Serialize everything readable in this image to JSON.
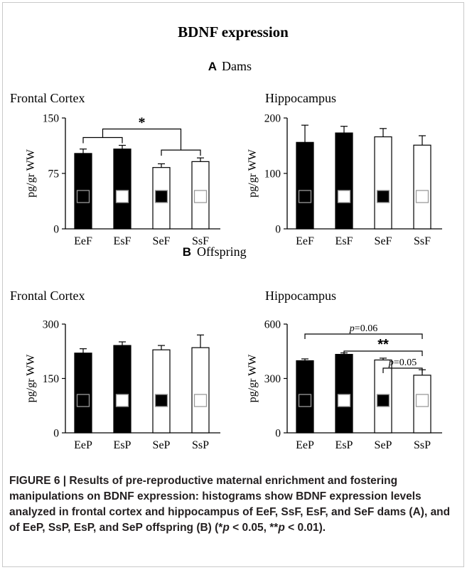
{
  "figure_title": "BDNF expression",
  "sections": [
    {
      "letter": "A",
      "label": "Dams"
    },
    {
      "letter": "B",
      "label": "Offspring"
    }
  ],
  "ylabel": "pg/gr WW",
  "colors": {
    "black": "#000000",
    "white": "#ffffff",
    "stroke": "#000000",
    "square_gray": "#9a9a9a"
  },
  "chart_data": [
    {
      "type": "bar",
      "title": "Frontal Cortex",
      "section": "A",
      "ylabel": "pg/gr WW",
      "categories": [
        "EeF",
        "EsF",
        "SeF",
        "SsF"
      ],
      "values": [
        102,
        108,
        83,
        91
      ],
      "errors": [
        6,
        5,
        5,
        5
      ],
      "bar_fill": [
        "black",
        "black",
        "white",
        "white"
      ],
      "square_fill": [
        "black",
        "white",
        "black",
        "white"
      ],
      "ylim": [
        0,
        150
      ],
      "yticks": [
        0,
        75,
        150
      ],
      "grid": false,
      "annotations": [
        {
          "type": "group-bracket",
          "groups": [
            [
              0,
              1
            ],
            [
              2,
              3
            ]
          ],
          "label": "*"
        }
      ]
    },
    {
      "type": "bar",
      "title": "Hippocampus",
      "section": "A",
      "ylabel": "pg/gr WW",
      "categories": [
        "EeF",
        "EsF",
        "SeF",
        "SsF"
      ],
      "values": [
        156,
        173,
        166,
        151
      ],
      "errors": [
        31,
        12,
        15,
        17
      ],
      "bar_fill": [
        "black",
        "black",
        "white",
        "white"
      ],
      "square_fill": [
        "black",
        "white",
        "black",
        "white"
      ],
      "ylim": [
        0,
        200
      ],
      "yticks": [
        0,
        100,
        200
      ],
      "grid": false,
      "annotations": []
    },
    {
      "type": "bar",
      "title": "Frontal Cortex",
      "section": "B",
      "ylabel": "pg/gr WW",
      "categories": [
        "EeP",
        "EsP",
        "SeP",
        "SsP"
      ],
      "values": [
        220,
        241,
        229,
        235
      ],
      "errors": [
        12,
        10,
        12,
        35
      ],
      "bar_fill": [
        "black",
        "black",
        "white",
        "white"
      ],
      "square_fill": [
        "black",
        "white",
        "black",
        "white"
      ],
      "ylim": [
        0,
        300
      ],
      "yticks": [
        0,
        150,
        300
      ],
      "grid": false,
      "annotations": []
    },
    {
      "type": "bar",
      "title": "Hippocampus",
      "section": "B",
      "ylabel": "pg/gr WW",
      "categories": [
        "EeP",
        "EsP",
        "SeP",
        "SsP"
      ],
      "values": [
        398,
        433,
        402,
        318
      ],
      "errors": [
        10,
        8,
        10,
        30
      ],
      "bar_fill": [
        "black",
        "black",
        "white",
        "white"
      ],
      "square_fill": [
        "black",
        "white",
        "black",
        "white"
      ],
      "ylim": [
        0,
        600
      ],
      "yticks": [
        0,
        300,
        600
      ],
      "grid": false,
      "annotations": [
        {
          "type": "bracket",
          "from": 0,
          "to": 3,
          "label": "p=0.06",
          "italic_prefix": "p",
          "rest": "=0.06"
        },
        {
          "type": "bracket",
          "from": 1,
          "to": 3,
          "label": "**"
        },
        {
          "type": "bracket",
          "from": 2,
          "to": 3,
          "label": "p=0.05",
          "italic_prefix": "p",
          "rest": "=0.05"
        }
      ]
    }
  ],
  "caption": {
    "lead": "FIGURE 6 | Results of pre-reproductive maternal enrichment and fostering manipulations on BDNF expression:",
    "body_1": " histograms show BDNF expression levels analyzed in frontal cortex and hippocampus of EeF, SsF, EsF, and SeF dams (A), and of EeP, SsP, EsP, and SeP offspring (B) (*",
    "p1": "p",
    "body_2": " < 0.05, **",
    "p2": "p",
    "body_3": " < 0.01)."
  }
}
